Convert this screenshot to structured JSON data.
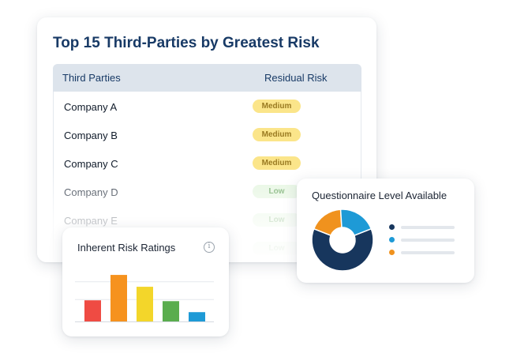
{
  "risk_table": {
    "title": "Top 15 Third-Parties by Greatest Risk",
    "columns": [
      "Third Parties",
      "Residual Risk"
    ],
    "rows": [
      {
        "name": "Company A",
        "risk": "Medium",
        "level": "medium"
      },
      {
        "name": "Company B",
        "risk": "Medium",
        "level": "medium"
      },
      {
        "name": "Company C",
        "risk": "Medium",
        "level": "medium"
      },
      {
        "name": "Company D",
        "risk": "Low",
        "level": "low"
      },
      {
        "name": "Company E",
        "risk": "Low",
        "level": "low"
      },
      {
        "name": "",
        "risk": "Low",
        "level": "low"
      }
    ]
  },
  "inherent_risk": {
    "title": "Inherent Risk Ratings",
    "info_icon": "info-icon",
    "chart_data": {
      "type": "bar",
      "values": [
        25,
        55,
        41,
        24,
        11
      ],
      "colors": [
        "#ef4b43",
        "#f6921e",
        "#f3d62a",
        "#5aad4e",
        "#1e9ad6"
      ],
      "ylim": [
        0,
        70
      ],
      "grid": true
    }
  },
  "questionnaire": {
    "title": "Questionnaire Level Available",
    "chart_data": {
      "type": "pie",
      "values": [
        62,
        20,
        18
      ],
      "colors": [
        "#17365d",
        "#1e9ad6",
        "#f0921e"
      ],
      "legend_placement": "right"
    }
  }
}
